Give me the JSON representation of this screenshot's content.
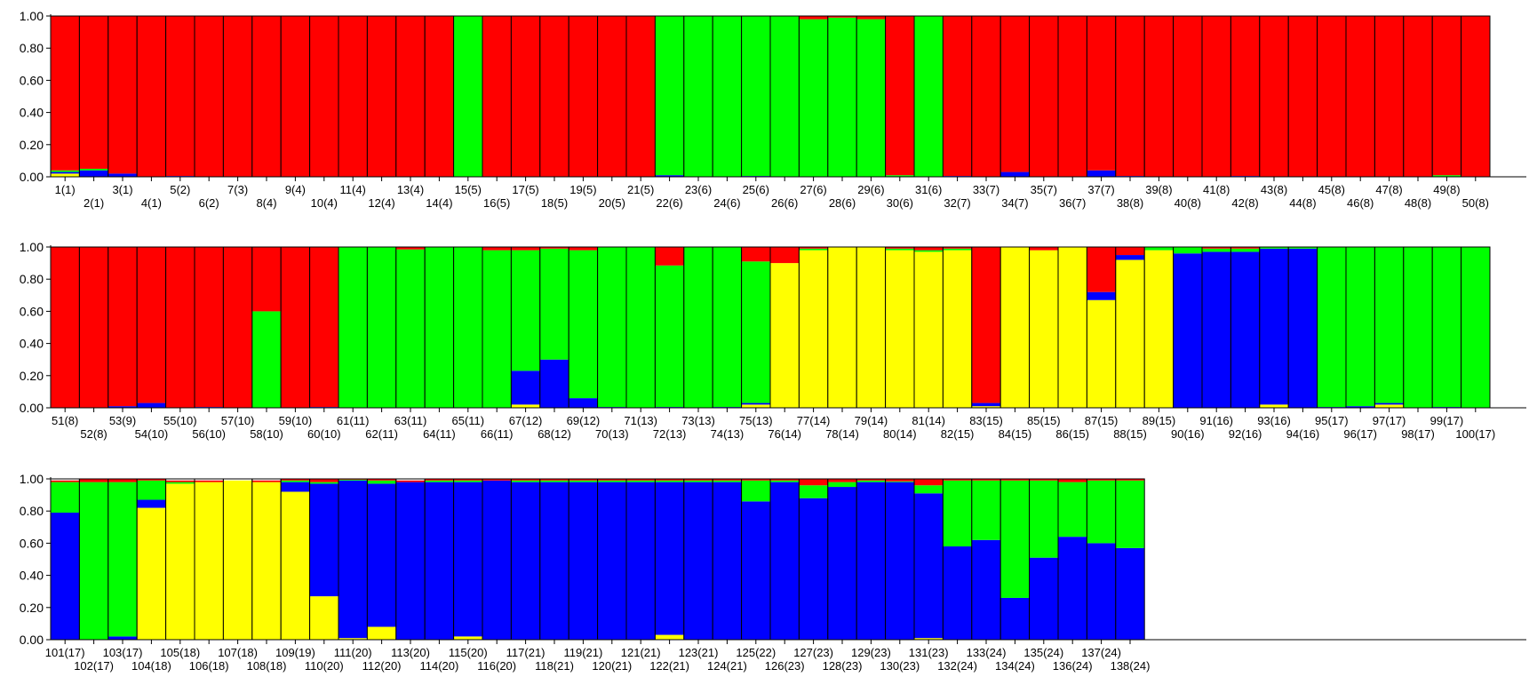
{
  "chart_data": {
    "type": "bar",
    "stacked": true,
    "ylim": [
      0,
      1
    ],
    "y_ticks": [
      "0.00",
      "0.20",
      "0.40",
      "0.60",
      "0.80",
      "1.00"
    ],
    "grid": false,
    "legend": "none",
    "colors": {
      "red": "#ff0000",
      "green": "#00ff00",
      "blue": "#0000ff",
      "yellow": "#ffff00"
    },
    "component_order_bottom_to_top": [
      "yellow",
      "blue",
      "green",
      "red"
    ],
    "panels": [
      {
        "categories": [
          "1(1)",
          "2(1)",
          "3(1)",
          "4(1)",
          "5(2)",
          "6(2)",
          "7(3)",
          "8(4)",
          "9(4)",
          "10(4)",
          "11(4)",
          "12(4)",
          "13(4)",
          "14(4)",
          "15(5)",
          "16(5)",
          "17(5)",
          "18(5)",
          "19(5)",
          "20(5)",
          "21(5)",
          "22(6)",
          "23(6)",
          "24(6)",
          "25(6)",
          "26(6)",
          "27(6)",
          "28(6)",
          "29(6)",
          "30(6)",
          "31(6)",
          "32(7)",
          "33(7)",
          "34(7)",
          "35(7)",
          "36(7)",
          "37(7)",
          "38(8)",
          "39(8)",
          "40(8)",
          "41(8)",
          "42(8)",
          "43(8)",
          "44(8)",
          "45(8)",
          "46(8)",
          "47(8)",
          "48(8)",
          "49(8)",
          "50(8)"
        ],
        "series": [
          {
            "color": "#ffff00",
            "values": [
              0.02,
              0,
              0,
              0,
              0,
              0,
              0,
              0,
              0,
              0,
              0,
              0,
              0,
              0,
              0,
              0,
              0,
              0,
              0,
              0,
              0,
              0,
              0,
              0,
              0,
              0,
              0,
              0,
              0,
              0,
              0,
              0,
              0,
              0,
              0,
              0,
              0,
              0,
              0,
              0,
              0,
              0,
              0,
              0,
              0,
              0,
              0,
              0,
              0,
              0
            ]
          },
          {
            "color": "#0000ff",
            "values": [
              0.01,
              0.04,
              0.02,
              0,
              0.005,
              0,
              0,
              0,
              0,
              0,
              0,
              0,
              0,
              0,
              0,
              0,
              0,
              0,
              0,
              0,
              0,
              0.01,
              0,
              0,
              0.005,
              0,
              0,
              0,
              0,
              0,
              0,
              0.005,
              0,
              0.03,
              0,
              0,
              0.04,
              0.005,
              0,
              0,
              0,
              0.005,
              0,
              0,
              0,
              0,
              0,
              0,
              0,
              0
            ]
          },
          {
            "color": "#00ff00",
            "values": [
              0.01,
              0.01,
              0,
              0,
              0,
              0,
              0,
              0,
              0,
              0,
              0,
              0,
              0,
              0,
              1,
              0,
              0,
              0,
              0,
              0,
              0,
              0.99,
              1,
              1,
              0.995,
              1,
              0.98,
              0.99,
              0.98,
              0.01,
              1,
              0,
              0,
              0,
              0,
              0,
              0,
              0,
              0,
              0,
              0,
              0,
              0,
              0,
              0,
              0,
              0,
              0,
              0.01,
              0
            ]
          },
          {
            "color": "#ff0000",
            "values": [
              0.96,
              0.95,
              0.98,
              1,
              0.995,
              1,
              1,
              1,
              1,
              1,
              1,
              1,
              1,
              1,
              0,
              1,
              1,
              1,
              1,
              1,
              1,
              0,
              0,
              0,
              0,
              0,
              0.02,
              0.01,
              0.02,
              0.99,
              0,
              0.995,
              1,
              0.97,
              1,
              1,
              0.96,
              0.995,
              1,
              1,
              1,
              0.995,
              1,
              1,
              1,
              1,
              1,
              1,
              0.99,
              1
            ]
          }
        ]
      },
      {
        "categories": [
          "51(8)",
          "52(8)",
          "53(9)",
          "54(10)",
          "55(10)",
          "56(10)",
          "57(10)",
          "58(10)",
          "59(10)",
          "60(10)",
          "61(11)",
          "62(11)",
          "63(11)",
          "64(11)",
          "65(11)",
          "66(11)",
          "67(12)",
          "68(12)",
          "69(12)",
          "70(13)",
          "71(13)",
          "72(13)",
          "73(13)",
          "74(13)",
          "75(13)",
          "76(14)",
          "77(14)",
          "78(14)",
          "79(14)",
          "80(14)",
          "81(14)",
          "82(15)",
          "83(15)",
          "84(15)",
          "85(15)",
          "86(15)",
          "87(15)",
          "88(15)",
          "89(15)",
          "90(16)",
          "91(16)",
          "92(16)",
          "93(16)",
          "94(16)",
          "95(17)",
          "96(17)",
          "97(17)",
          "98(17)",
          "99(17)",
          "100(17)"
        ],
        "series": [
          {
            "color": "#ffff00",
            "values": [
              0,
              0,
              0,
              0,
              0,
              0,
              0,
              0,
              0,
              0,
              0,
              0,
              0,
              0,
              0,
              0,
              0.02,
              0,
              0,
              0,
              0,
              0,
              0,
              0,
              0.02,
              0.9,
              0.98,
              1,
              1,
              0.98,
              0.97,
              0.98,
              0.01,
              1,
              0.98,
              1,
              0.67,
              0.92,
              0.98,
              0,
              0,
              0,
              0.02,
              0,
              0,
              0,
              0.02,
              0,
              0,
              0
            ]
          },
          {
            "color": "#0000ff",
            "values": [
              0,
              0,
              0.01,
              0.03,
              0,
              0.005,
              0,
              0,
              0,
              0.005,
              0,
              0,
              0,
              0,
              0,
              0,
              0.21,
              0.3,
              0.06,
              0.005,
              0,
              0.005,
              0,
              0.005,
              0.01,
              0,
              0,
              0,
              0,
              0,
              0,
              0,
              0.02,
              0,
              0,
              0,
              0.05,
              0.03,
              0,
              0.96,
              0.97,
              0.97,
              0.97,
              0.99,
              0.005,
              0.01,
              0.01,
              0,
              0.005,
              0
            ]
          },
          {
            "color": "#00ff00",
            "values": [
              0,
              0,
              0,
              0,
              0,
              0,
              0,
              0.6,
              0,
              0,
              1,
              1,
              0.985,
              1,
              1,
              0.98,
              0.75,
              0.69,
              0.92,
              0.995,
              1,
              0.88,
              1,
              0.995,
              0.88,
              0,
              0.01,
              0,
              0,
              0.01,
              0.01,
              0.01,
              0,
              0,
              0,
              0,
              0,
              0,
              0.02,
              0.04,
              0.02,
              0.02,
              0.01,
              0.01,
              0.995,
              0.99,
              0.97,
              1,
              0.995,
              1
            ]
          },
          {
            "color": "#ff0000",
            "values": [
              1,
              1,
              0.99,
              0.97,
              1,
              0.995,
              1,
              0.4,
              1,
              0.995,
              0,
              0,
              0.015,
              0,
              0,
              0.02,
              0.02,
              0.01,
              0.02,
              0,
              0,
              0.115,
              0,
              0,
              0.09,
              0.1,
              0.01,
              0,
              0,
              0.01,
              0.02,
              0.01,
              0.97,
              0,
              0.02,
              0,
              0.28,
              0.05,
              0,
              0,
              0.01,
              0.01,
              0,
              0,
              0,
              0,
              0,
              0,
              0,
              0
            ]
          }
        ]
      },
      {
        "categories": [
          "101(17)",
          "102(17)",
          "103(17)",
          "104(18)",
          "105(18)",
          "106(18)",
          "107(18)",
          "108(18)",
          "109(19)",
          "110(20)",
          "111(20)",
          "112(20)",
          "113(20)",
          "114(20)",
          "115(20)",
          "116(20)",
          "117(21)",
          "118(21)",
          "119(21)",
          "120(21)",
          "121(21)",
          "122(21)",
          "123(21)",
          "124(21)",
          "125(22)",
          "126(23)",
          "127(23)",
          "128(23)",
          "129(23)",
          "130(23)",
          "131(23)",
          "132(24)",
          "133(24)",
          "134(24)",
          "135(24)",
          "136(24)",
          "137(24)",
          "138(24)"
        ],
        "series": [
          {
            "color": "#ffff00",
            "values": [
              0,
              0,
              0,
              0.82,
              0.97,
              0.98,
              0.99,
              0.98,
              0.92,
              0.27,
              0.01,
              0.08,
              0,
              0,
              0.02,
              0,
              0,
              0,
              0,
              0,
              0,
              0.03,
              0,
              0,
              0,
              0,
              0,
              0,
              0,
              0,
              0.01,
              0,
              0,
              0,
              0,
              0,
              0,
              0
            ]
          },
          {
            "color": "#0000ff",
            "values": [
              0.79,
              0,
              0.02,
              0.05,
              0,
              0,
              0,
              0,
              0.06,
              0.7,
              0.98,
              0.89,
              0.98,
              0.98,
              0.96,
              0.99,
              0.98,
              0.98,
              0.98,
              0.98,
              0.98,
              0.95,
              0.98,
              0.98,
              0.86,
              0.98,
              0.88,
              0.95,
              0.98,
              0.98,
              0.9,
              0.58,
              0.62,
              0.26,
              0.51,
              0.64,
              0.6,
              0.57
            ]
          },
          {
            "color": "#00ff00",
            "values": [
              0.19,
              0.98,
              0.96,
              0.12,
              0.01,
              0,
              0,
              0,
              0.01,
              0.01,
              0.005,
              0.02,
              0,
              0.01,
              0.01,
              0,
              0.01,
              0.01,
              0.01,
              0.01,
              0.01,
              0.01,
              0.01,
              0.01,
              0.13,
              0.01,
              0.08,
              0.03,
              0.01,
              0.005,
              0.05,
              0.41,
              0.37,
              0.73,
              0.48,
              0.34,
              0.39,
              0.42
            ]
          },
          {
            "color": "#ff0000",
            "values": [
              0.01,
              0.02,
              0.02,
              0.01,
              0.01,
              0.01,
              0,
              0.01,
              0.01,
              0.02,
              0.005,
              0.01,
              0.01,
              0.01,
              0.01,
              0.01,
              0.01,
              0.01,
              0.01,
              0.01,
              0.01,
              0.01,
              0.01,
              0.01,
              0.01,
              0.01,
              0.04,
              0.02,
              0.01,
              0.015,
              0.04,
              0.01,
              0.01,
              0.01,
              0.01,
              0.02,
              0.01,
              0.01
            ]
          }
        ]
      }
    ]
  }
}
